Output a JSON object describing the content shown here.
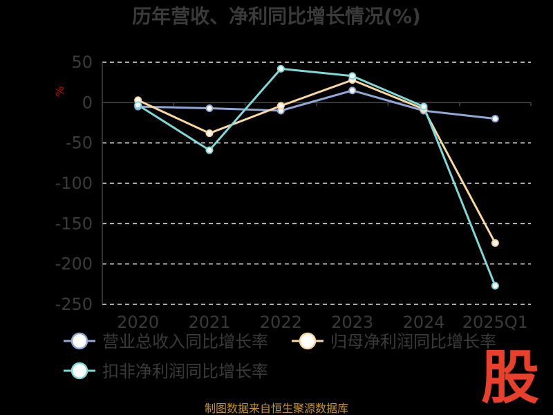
{
  "chart_data": {
    "type": "line",
    "title": "历年营收、净利同比增长情况(%)",
    "ylabel": "%",
    "categories": [
      "2020",
      "2021",
      "2022",
      "2023",
      "2024",
      "2025Q1"
    ],
    "ylim": [
      -250,
      50
    ],
    "yticks": [
      50,
      0,
      -50,
      -100,
      -150,
      -200,
      -250
    ],
    "grid": true,
    "legend_position": "bottom",
    "series": [
      {
        "name": "营业总收入同比增长率",
        "color": "#8fa8d8",
        "values": [
          -5,
          -7,
          -10,
          15,
          -10,
          -20
        ]
      },
      {
        "name": "归母净利润同比增长率",
        "color": "#fbd7a0",
        "values": [
          3,
          -38,
          -4,
          28,
          -8,
          -174
        ]
      },
      {
        "name": "扣非净利润同比增长率",
        "color": "#7fd8d8",
        "values": [
          -3,
          -59,
          42,
          33,
          -5,
          -227
        ]
      }
    ]
  },
  "footer": {
    "source": "制图数据来自恒生聚源数据库"
  },
  "logo": {
    "text": "股"
  }
}
